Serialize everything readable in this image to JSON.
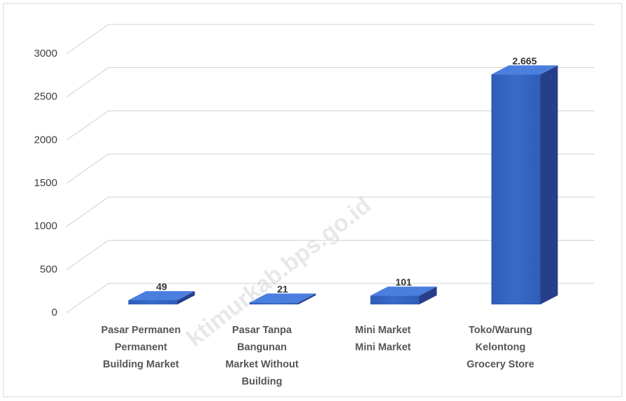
{
  "chart_data": {
    "type": "bar3d",
    "categories": [
      [
        "Pasar Permanen",
        "Permanent",
        "Building Market"
      ],
      [
        "Pasar Tanpa",
        "Bangunan",
        "Market Without",
        "Building"
      ],
      [
        "Mini Market",
        "Mini Market"
      ],
      [
        "Toko/Warung",
        "Kelontong",
        "Grocery Store"
      ]
    ],
    "values": [
      49,
      21,
      101,
      2665
    ],
    "value_labels": [
      "49",
      "21",
      "101",
      "2.665"
    ],
    "color": "#3a6bc9",
    "ylim": [
      0,
      3000
    ],
    "yticks": [
      0,
      500,
      1000,
      1500,
      2000,
      2500,
      3000
    ],
    "grid": true,
    "watermark": "ktimurkab.bps.go.id"
  }
}
